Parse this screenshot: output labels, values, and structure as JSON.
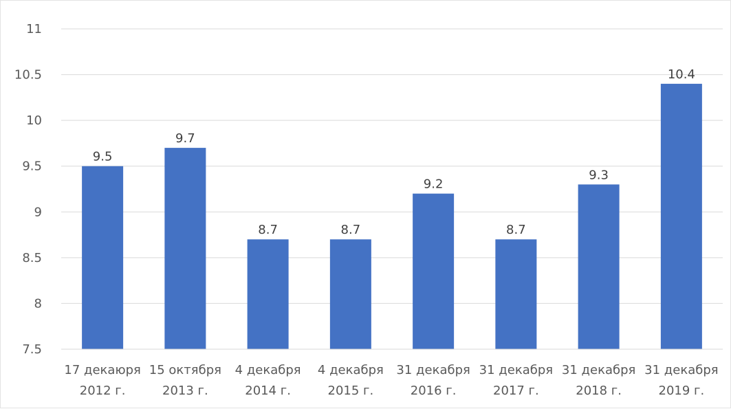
{
  "chart_data": {
    "type": "bar",
    "title": "",
    "xlabel": "",
    "ylabel": "",
    "ylim": [
      7.5,
      11
    ],
    "yticks": [
      "7.5",
      "8",
      "8.5",
      "9",
      "9.5",
      "10",
      "10.5",
      "11"
    ],
    "ytick_values": [
      7.5,
      8,
      8.5,
      9,
      9.5,
      10,
      10.5,
      11
    ],
    "grid": true,
    "legend": "none",
    "bar_color": "#4472c4",
    "categories": [
      [
        "17 декаюря",
        "2012 г."
      ],
      [
        "15 октября",
        "2013 г."
      ],
      [
        "4 декабря",
        "2014 г."
      ],
      [
        "4 декабря",
        "2015 г."
      ],
      [
        "31 декабря",
        "2016 г."
      ],
      [
        "31 декабря",
        "2017 г."
      ],
      [
        "31 декабря",
        "2018 г."
      ],
      [
        "31 декабря",
        "2019 г."
      ]
    ],
    "values": [
      9.5,
      9.7,
      8.7,
      8.7,
      9.2,
      8.7,
      9.3,
      10.4
    ],
    "data_labels": [
      "9.5",
      "9.7",
      "8.7",
      "8.7",
      "9.2",
      "8.7",
      "9.3",
      "10.4"
    ]
  }
}
